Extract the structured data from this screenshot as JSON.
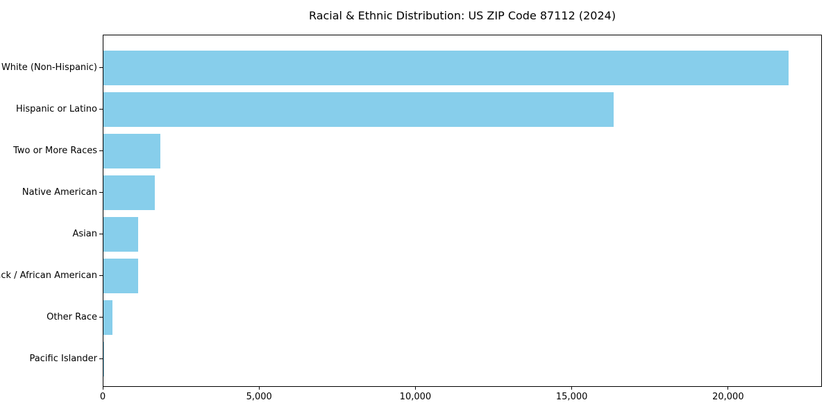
{
  "colors": {
    "bar": "#87CEEB",
    "spine": "#000000",
    "text": "#000000",
    "background": "#FFFFFF"
  },
  "chart_data": {
    "type": "bar",
    "orientation": "horizontal",
    "title": "Racial & Ethnic Distribution: US ZIP Code 87112 (2024)",
    "categories": [
      "White (Non-Hispanic)",
      "Hispanic or Latino",
      "Two or More Races",
      "Native American",
      "Asian",
      "Black / African American",
      "Other Race",
      "Pacific Islander"
    ],
    "values": [
      21950,
      16340,
      1820,
      1640,
      1120,
      1110,
      280,
      30
    ],
    "xlabel": "",
    "ylabel": "",
    "xlim": [
      0,
      23000
    ],
    "x_ticks": [
      0,
      5000,
      10000,
      15000,
      20000
    ],
    "x_tick_labels": [
      "0",
      "5,000",
      "10,000",
      "15,000",
      "20,000"
    ],
    "bar_color": "#87CEEB",
    "grid": false,
    "legend": null
  }
}
